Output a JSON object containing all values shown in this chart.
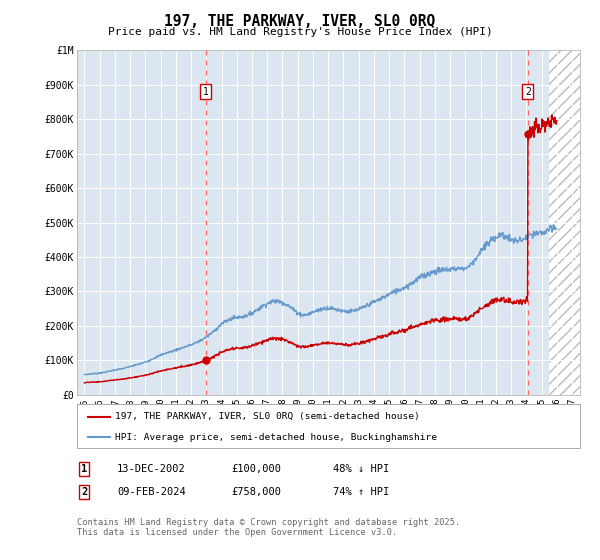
{
  "title": "197, THE PARKWAY, IVER, SL0 0RQ",
  "subtitle": "Price paid vs. HM Land Registry's House Price Index (HPI)",
  "legend_line1": "197, THE PARKWAY, IVER, SL0 0RQ (semi-detached house)",
  "legend_line2": "HPI: Average price, semi-detached house, Buckinghamshire",
  "table_row1": [
    "1",
    "13-DEC-2002",
    "£100,000",
    "48% ↓ HPI"
  ],
  "table_row2": [
    "2",
    "09-FEB-2024",
    "£758,000",
    "74% ↑ HPI"
  ],
  "footnote": "Contains HM Land Registry data © Crown copyright and database right 2025.\nThis data is licensed under the Open Government Licence v3.0.",
  "ylim": [
    0,
    1000000
  ],
  "yticks": [
    0,
    100000,
    200000,
    300000,
    400000,
    500000,
    600000,
    700000,
    800000,
    900000,
    1000000
  ],
  "ytick_labels": [
    "£0",
    "£100K",
    "£200K",
    "£300K",
    "£400K",
    "£500K",
    "£600K",
    "£700K",
    "£800K",
    "£900K",
    "£1M"
  ],
  "xlim_start": 1994.5,
  "xlim_end": 2027.5,
  "xticks": [
    1995,
    1996,
    1997,
    1998,
    1999,
    2000,
    2001,
    2002,
    2003,
    2004,
    2005,
    2006,
    2007,
    2008,
    2009,
    2010,
    2011,
    2012,
    2013,
    2014,
    2015,
    2016,
    2017,
    2018,
    2019,
    2020,
    2021,
    2022,
    2023,
    2024,
    2025,
    2026,
    2027
  ],
  "sale1_x": 2002.95,
  "sale1_y": 100000,
  "sale2_x": 2024.1,
  "sale2_y": 758000,
  "hatch_start": 2025.5,
  "red_line_color": "#cc0000",
  "blue_line_color": "#6699cc",
  "background_color": "#dce6f1",
  "sale_marker_color": "#cc0000",
  "dashed_line_color": "#ff6666"
}
